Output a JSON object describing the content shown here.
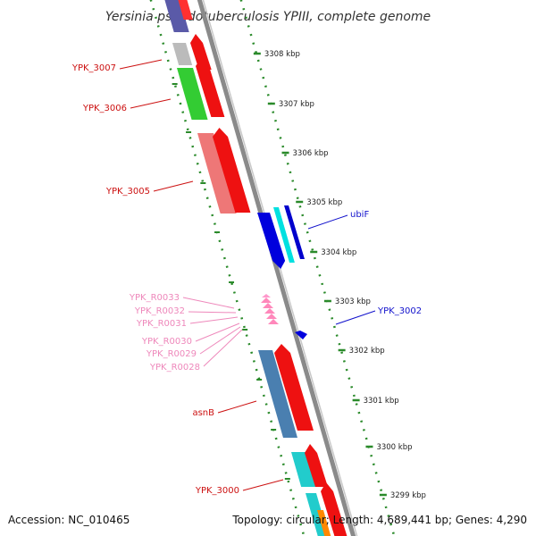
{
  "title": "Yersinia pseudotuberculosis YPIII, complete genome",
  "footer": {
    "accession": "Accession: NC_010465",
    "topology": "Topology: circular; Length: 4,689,441 bp; Genes: 4,290"
  },
  "colors": {
    "backbone": "#8a8a8a",
    "tick": "#2a8a2a",
    "label_red": "#cc1111",
    "label_blue": "#1111cc",
    "label_pink": "#ee88bb"
  },
  "ruler": [
    {
      "label": "3308 kbp"
    },
    {
      "label": "3307 kbp"
    },
    {
      "label": "3306 kbp"
    },
    {
      "label": "3305 kbp"
    },
    {
      "label": "3304 kbp"
    },
    {
      "label": "3303 kbp"
    },
    {
      "label": "3302 kbp"
    },
    {
      "label": "3301 kbp"
    },
    {
      "label": "3300 kbp"
    },
    {
      "label": "3299 kbp"
    }
  ],
  "gene_labels": [
    {
      "name": "YPK_3007",
      "color": "#cc1111"
    },
    {
      "name": "YPK_3006",
      "color": "#cc1111"
    },
    {
      "name": "YPK_3005",
      "color": "#cc1111"
    },
    {
      "name": "ubiF",
      "color": "#1111cc"
    },
    {
      "name": "YPK_R0033",
      "color": "#ee88bb"
    },
    {
      "name": "YPK_R0032",
      "color": "#ee88bb"
    },
    {
      "name": "YPK_R0031",
      "color": "#ee88bb"
    },
    {
      "name": "YPK_3002",
      "color": "#1111cc"
    },
    {
      "name": "YPK_R0030",
      "color": "#ee88bb"
    },
    {
      "name": "YPK_R0029",
      "color": "#ee88bb"
    },
    {
      "name": "YPK_R0028",
      "color": "#ee88bb"
    },
    {
      "name": "asnB",
      "color": "#cc1111"
    },
    {
      "name": "YPK_3000",
      "color": "#cc1111"
    }
  ]
}
